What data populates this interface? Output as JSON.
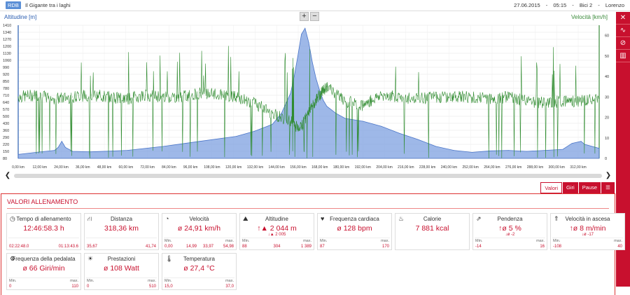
{
  "header": {
    "logo": "RDB",
    "title": "Il Gigante tra i laghi",
    "date": "27.06.2015",
    "time": "05:15",
    "bike": "Bici 2",
    "user": "Lorenzo"
  },
  "chart_controls": {
    "zoom_in": "+",
    "zoom_out": "−"
  },
  "side_icons": [
    "line-chart-icon",
    "no-symbol-icon",
    "bar-chart-icon"
  ],
  "tabs": {
    "values": "Valori",
    "laps": "Giri",
    "pause": "Pause"
  },
  "section_title": "VALORI ALLENAMENTO",
  "chart_data": {
    "type": "line",
    "ylabel_left": "Altitudine [m]",
    "ylabel_right": "Velocità [km/h]",
    "y_left_ticks": [
      "1410",
      "1340",
      "1270",
      "1200",
      "1130",
      "1060",
      "990",
      "920",
      "850",
      "780",
      "710",
      "640",
      "570",
      "500",
      "430",
      "360",
      "290",
      "220",
      "150",
      "80"
    ],
    "y_right_ticks": [
      "60",
      "50",
      "40",
      "30",
      "20",
      "10",
      "0"
    ],
    "x_ticks": [
      "0,00 km",
      "12,00 km",
      "24,00 km",
      "36,00 km",
      "48,00 km",
      "60,00 km",
      "72,00 km",
      "84,00 km",
      "96,00 km",
      "108,00 km",
      "120,00 km",
      "132,00 km",
      "144,00 km",
      "156,00 km",
      "168,00 km",
      "180,00 km",
      "192,00 km",
      "204,00 km",
      "216,00 km",
      "228,00 km",
      "240,00 km",
      "252,00 km",
      "264,00 km",
      "276,00 km",
      "288,00 km",
      "300,00 km",
      "312,00 km"
    ],
    "ylim_left": [
      80,
      1410
    ],
    "ylim_right": [
      0,
      65
    ],
    "xlim": [
      0,
      320
    ],
    "series": [
      {
        "name": "Altitudine [m]",
        "color": "#7da0e0",
        "x": [
          0,
          10,
          20,
          22,
          24,
          26,
          30,
          40,
          60,
          80,
          100,
          120,
          130,
          140,
          145,
          150,
          152,
          154,
          156,
          158,
          160,
          162,
          164,
          166,
          168,
          170,
          175,
          180,
          190,
          200,
          210,
          220,
          230,
          240,
          250,
          260,
          270,
          280,
          290,
          300,
          305,
          310,
          312,
          320
        ],
        "values": [
          120,
          140,
          160,
          190,
          250,
          190,
          150,
          145,
          160,
          200,
          250,
          300,
          350,
          420,
          530,
          730,
          900,
          1100,
          1320,
          1380,
          1240,
          1040,
          880,
          760,
          660,
          600,
          530,
          480,
          450,
          400,
          330,
          270,
          200,
          160,
          140,
          155,
          160,
          150,
          160,
          170,
          230,
          250,
          220,
          180
        ]
      },
      {
        "name": "Velocità [km/h]",
        "color": "#2e8b2e",
        "x": [
          0,
          10,
          20,
          30,
          40,
          50,
          60,
          70,
          80,
          90,
          100,
          110,
          120,
          130,
          140,
          150,
          155,
          160,
          165,
          170,
          180,
          190,
          200,
          210,
          220,
          230,
          240,
          250,
          260,
          270,
          280,
          290,
          300,
          310,
          320
        ],
        "values": [
          30,
          31,
          29,
          30,
          31,
          30,
          29,
          31,
          30,
          30,
          32,
          31,
          30,
          27,
          22,
          18,
          14,
          22,
          30,
          35,
          28,
          26,
          31,
          30,
          29,
          30,
          30,
          30,
          29,
          30,
          28,
          27,
          28,
          28,
          30
        ]
      }
    ]
  },
  "cards": [
    {
      "title": "Tempo di allenamento",
      "icon": "clock-icon",
      "value": "12:46:58.3 h",
      "left_val": "02:22:48.0",
      "right_val": "01:13:43.6"
    },
    {
      "title": "Distanza",
      "icon": "road-icon",
      "value": "318,36 km",
      "left_val": "35,67",
      "right_val": "41,74"
    },
    {
      "title": "Velocità",
      "icon": "speedometer-icon",
      "value": "ø 24,91 km/h",
      "min_label": "Min.",
      "max_label": "max.",
      "min": "0,00",
      "mid1": "14,99",
      "mid2": "33,97",
      "max": "54,98"
    },
    {
      "title": "Altitudine",
      "icon": "mountain-icon",
      "value": "↑▲ 2 044 m",
      "sub": "↓▲ 2 005",
      "min_label": "Min.",
      "max_label": "max.",
      "min": "88",
      "mid": "304",
      "max": "1 389"
    },
    {
      "title": "Frequenza cardiaca",
      "icon": "heart-icon",
      "value": "ø 128 bpm",
      "min_label": "Min.",
      "max_label": "max.",
      "min": "87",
      "max": "170"
    },
    {
      "title": "Calorie",
      "icon": "flame-icon",
      "value": "7 881 kcal"
    },
    {
      "title": "Pendenza",
      "icon": "slope-icon",
      "value": "↑ø 5 %",
      "sub": "↓ø -2",
      "min_label": "Min.",
      "max_label": "max.",
      "min": "-14",
      "max": "16"
    },
    {
      "title": "Velocità in ascesa",
      "icon": "climb-speed-icon",
      "value": "↑ø 8 m/min",
      "sub": "↓ø -17",
      "min_label": "Min.",
      "max_label": "max.",
      "min": "-108",
      "max": "40"
    },
    {
      "title": "Frequenza della pedalata",
      "icon": "pedal-icon",
      "value": "ø 66 Giri/min",
      "min_label": "Min.",
      "max_label": "max.",
      "min": "0",
      "max": "110"
    },
    {
      "title": "Prestazioni",
      "icon": "sun-icon",
      "value": "ø 108 Watt",
      "min_label": "Min.",
      "max_label": "max.",
      "min": "0",
      "max": "510"
    },
    {
      "title": "Temperatura",
      "icon": "thermometer-icon",
      "value": "ø 27,4 °C",
      "min_label": "Min.",
      "max_label": "max.",
      "min": "15,0",
      "max": "37,0"
    }
  ]
}
